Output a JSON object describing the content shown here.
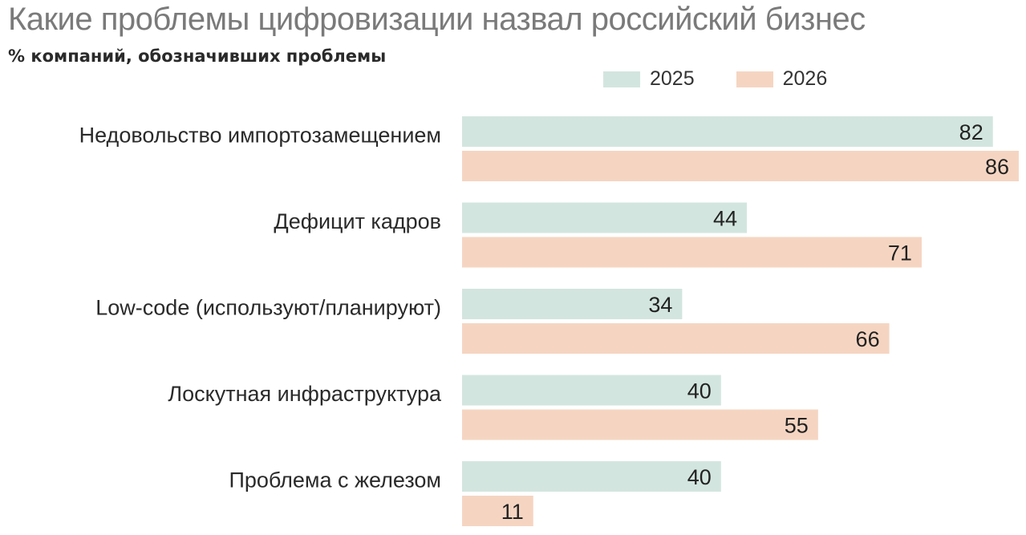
{
  "chart_data": {
    "type": "bar",
    "orientation": "horizontal",
    "title": "Какие проблемы цифровизации назвал российский бизнес",
    "subtitle": "% компаний, обозначивших проблемы",
    "categories": [
      "Недовольство импортозамещением",
      "Дефицит кадров",
      "Low-code (используют/планируют)",
      "Лоскутная инфраструктура",
      "Проблема с железом"
    ],
    "series": [
      {
        "name": "2025",
        "color": "#d3e5df",
        "values": [
          82,
          44,
          34,
          40,
          40
        ]
      },
      {
        "name": "2026",
        "color": "#f5d5c2",
        "values": [
          86,
          71,
          66,
          55,
          11
        ]
      }
    ],
    "xlim": [
      0,
      86
    ],
    "grid": false,
    "legend_position": "top-right"
  }
}
